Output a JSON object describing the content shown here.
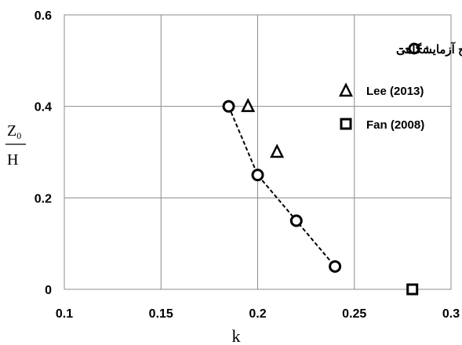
{
  "chart_data": {
    "type": "scatter",
    "xlabel": "k",
    "ylabel": {
      "numerator": "Z",
      "subscript": "0",
      "denominator": "H"
    },
    "xlim": [
      0.1,
      0.3
    ],
    "ylim": [
      0,
      0.6
    ],
    "x_ticks": [
      "0.1",
      "0.15",
      "0.2",
      "0.25",
      "0.3"
    ],
    "y_ticks": [
      "0",
      "0.2",
      "0.4",
      "0.6"
    ],
    "grid": true,
    "legend_position": "top-right",
    "series": [
      {
        "name": "نتایج آزمایشگاهی",
        "marker": "circle",
        "line": "dashed",
        "points": [
          {
            "x": 0.185,
            "y": 0.4
          },
          {
            "x": 0.2,
            "y": 0.25
          },
          {
            "x": 0.22,
            "y": 0.15
          },
          {
            "x": 0.24,
            "y": 0.05
          }
        ]
      },
      {
        "name": "Lee (2013)",
        "marker": "triangle",
        "line": "none",
        "points": [
          {
            "x": 0.195,
            "y": 0.4
          },
          {
            "x": 0.21,
            "y": 0.3
          }
        ]
      },
      {
        "name": "Fan (2008)",
        "marker": "square",
        "line": "none",
        "points": [
          {
            "x": 0.28,
            "y": 0.0
          }
        ]
      }
    ]
  }
}
